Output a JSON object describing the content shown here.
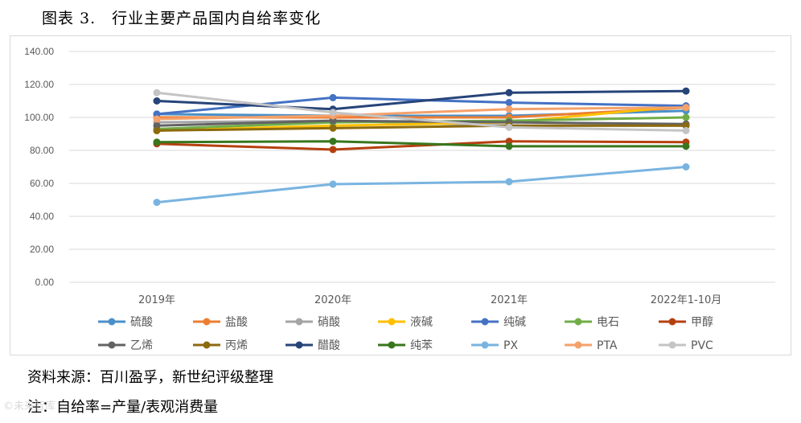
{
  "figure": {
    "title": "图表 3.　行业主要产品国内自给率变化",
    "source": "资料来源：百川盈孚，新世纪评级整理",
    "note": "注：自给率=产量/表观消费量"
  },
  "chart_data": {
    "type": "line",
    "title": "",
    "xlabel": "",
    "ylabel": "",
    "categories": [
      "2019年",
      "2020年",
      "2021年",
      "2022年1-10月"
    ],
    "ylim": [
      0,
      140
    ],
    "yticks": [
      "0.00",
      "20.00",
      "40.00",
      "60.00",
      "80.00",
      "100.00",
      "120.00",
      "140.00"
    ],
    "grid": true,
    "legend_position": "bottom",
    "series": [
      {
        "name": "硫酸",
        "color": "#4a90c8",
        "values": [
          102,
          101,
          101,
          104
        ]
      },
      {
        "name": "盐酸",
        "color": "#ed7d31",
        "values": [
          100,
          100,
          100,
          106
        ]
      },
      {
        "name": "硝酸",
        "color": "#a5a5a5",
        "values": [
          97,
          98,
          95,
          95
        ]
      },
      {
        "name": "液碱",
        "color": "#ffc000",
        "values": [
          92,
          95,
          97,
          107
        ]
      },
      {
        "name": "纯碱",
        "color": "#4472c4",
        "values": [
          102,
          112,
          109,
          107
        ]
      },
      {
        "name": "电石",
        "color": "#70ad47",
        "values": [
          93,
          97,
          98,
          100
        ]
      },
      {
        "name": "甲醇",
        "color": "#b5400f",
        "values": [
          84,
          80.5,
          85.5,
          85
        ]
      },
      {
        "name": "乙烯",
        "color": "#636363",
        "values": [
          95,
          98,
          97,
          96
        ]
      },
      {
        "name": "丙烯",
        "color": "#8c6a0e",
        "values": [
          92,
          93.5,
          95,
          95
        ]
      },
      {
        "name": "醋酸",
        "color": "#264478",
        "values": [
          110,
          105,
          115,
          116
        ]
      },
      {
        "name": "纯苯",
        "color": "#38761d",
        "values": [
          85,
          85.5,
          82.5,
          82.5
        ]
      },
      {
        "name": "PX",
        "color": "#79b4e0",
        "values": [
          48.5,
          59.5,
          61,
          70
        ]
      },
      {
        "name": "PTA",
        "color": "#f4a16b",
        "values": [
          99,
          101,
          105,
          106
        ]
      },
      {
        "name": "PVC",
        "color": "#c4c4c4",
        "values": [
          115,
          103,
          94,
          92
        ]
      }
    ]
  },
  "watermark": "©未来智库"
}
